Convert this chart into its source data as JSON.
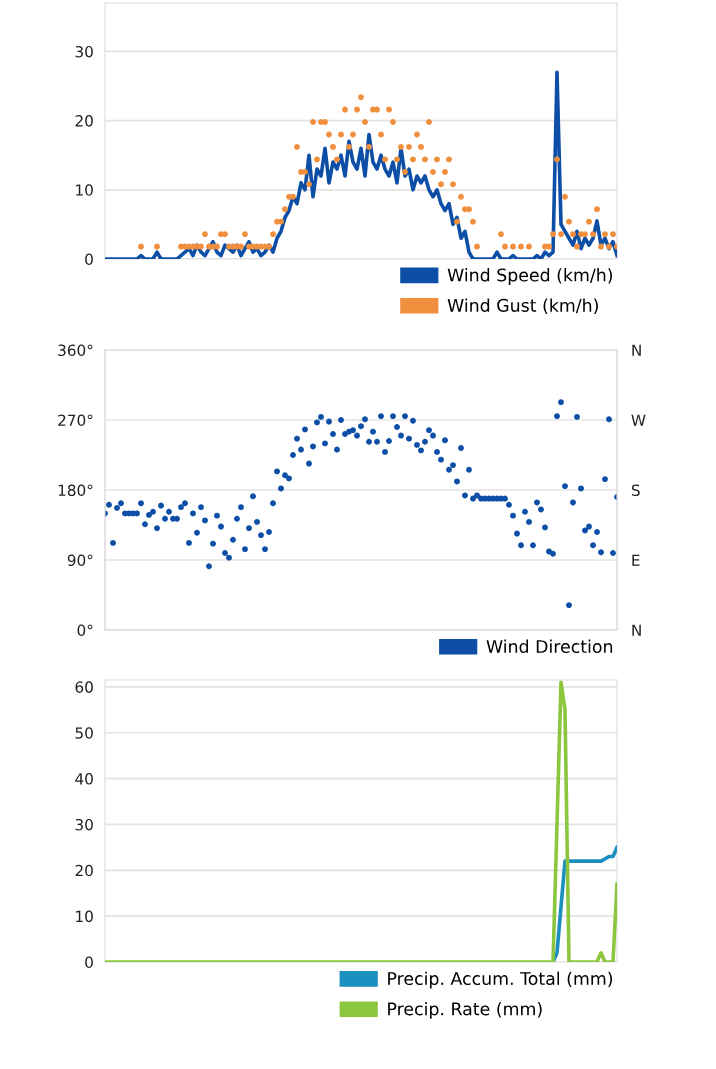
{
  "chart_data": [
    {
      "type": "line",
      "categories": [
        null,
        null,
        null,
        null,
        null,
        null,
        null,
        null,
        null,
        null,
        null,
        null,
        null,
        null,
        null,
        null,
        null,
        null,
        null,
        null,
        null,
        null,
        null,
        null,
        null,
        null,
        null,
        null,
        null,
        null,
        null,
        null,
        null,
        null,
        null,
        null,
        null,
        null,
        null,
        null,
        null,
        null,
        null,
        null,
        null,
        null,
        null,
        null,
        null,
        null,
        null,
        null,
        null,
        null,
        null,
        null,
        null,
        null,
        null,
        null,
        null,
        null,
        null,
        null,
        null,
        null,
        null,
        null,
        null,
        null,
        null,
        null,
        null,
        null,
        null,
        null,
        null,
        null,
        null,
        null,
        null,
        null,
        null,
        null,
        null,
        null,
        null,
        null,
        null,
        null,
        null,
        null,
        null,
        null,
        null,
        null,
        null,
        null,
        null,
        null,
        null,
        null,
        null,
        null,
        null,
        null,
        null,
        null,
        null,
        null,
        null,
        null,
        null,
        null,
        null,
        null,
        null,
        null,
        null,
        null,
        null,
        null,
        null,
        null,
        null,
        null,
        null,
        null,
        null
      ],
      "ylim": [
        0,
        37
      ],
      "yticks": [
        0,
        10,
        20,
        30
      ],
      "grid": "y",
      "legend": "bottom right",
      "series": [
        {
          "name": "Wind Speed (km/h)",
          "color": "#0d4fa6",
          "values": [
            0,
            0,
            0,
            0,
            0,
            0,
            0,
            0,
            0,
            0.5,
            0,
            0,
            0,
            1,
            0,
            0,
            0,
            0,
            0,
            0.5,
            1,
            1.5,
            0.5,
            2,
            1,
            0.5,
            1.5,
            2.5,
            1,
            0.5,
            2,
            1.5,
            1,
            2,
            0.5,
            1.5,
            2.5,
            1,
            1.5,
            0.5,
            1,
            2,
            1,
            3,
            4,
            6,
            7,
            9,
            8,
            11,
            10,
            15,
            9,
            13,
            12,
            16,
            11,
            14,
            13,
            15,
            12,
            17,
            14,
            13,
            16,
            12,
            18,
            14,
            13,
            15,
            13,
            12,
            14,
            11,
            16,
            12,
            13,
            10,
            12,
            11,
            12,
            10,
            9,
            10,
            8,
            7,
            8,
            5,
            6,
            3,
            4,
            1,
            0,
            0,
            0,
            0,
            0,
            0,
            1,
            0,
            0,
            0,
            0.5,
            0,
            0,
            0,
            0,
            0,
            0.5,
            0,
            1,
            0.5,
            1,
            27,
            5,
            4,
            3,
            2,
            4,
            1.5,
            3,
            2,
            3,
            5.5,
            2,
            3,
            1.5,
            2.5,
            0.5
          ]
        },
        {
          "name": "Wind Gust (km/h)",
          "type": "scatter",
          "marker": "circle",
          "color": "#f0903f",
          "values": [
            null,
            null,
            null,
            null,
            null,
            null,
            null,
            null,
            null,
            1.8,
            null,
            null,
            null,
            1.8,
            null,
            null,
            null,
            null,
            null,
            1.8,
            1.8,
            1.8,
            1.8,
            1.8,
            1.8,
            3.6,
            1.8,
            1.8,
            1.8,
            3.6,
            3.6,
            1.8,
            1.8,
            1.8,
            1.8,
            3.6,
            1.8,
            1.8,
            1.8,
            1.8,
            1.8,
            1.8,
            3.6,
            5.4,
            5.4,
            7.2,
            9.0,
            9.0,
            16.2,
            12.6,
            12.6,
            10.8,
            19.8,
            14.4,
            19.8,
            19.8,
            18.0,
            16.2,
            14.4,
            18.0,
            21.6,
            16.2,
            18.0,
            21.6,
            23.4,
            19.8,
            16.2,
            21.6,
            21.6,
            18.0,
            14.4,
            21.6,
            19.8,
            14.4,
            16.2,
            12.6,
            16.2,
            14.4,
            18.0,
            16.2,
            14.4,
            19.8,
            12.6,
            14.4,
            10.8,
            12.6,
            14.4,
            10.8,
            5.4,
            9.0,
            7.2,
            7.2,
            5.4,
            1.8,
            null,
            null,
            null,
            null,
            null,
            3.6,
            1.8,
            null,
            1.8,
            null,
            1.8,
            null,
            1.8,
            null,
            null,
            null,
            1.8,
            1.8,
            3.6,
            14.4,
            3.6,
            9.0,
            5.4,
            3.6,
            1.8,
            3.6,
            3.6,
            5.4,
            3.6,
            7.2,
            1.8,
            3.6,
            1.8,
            3.6,
            1.8
          ]
        }
      ]
    },
    {
      "type": "scatter",
      "marker": "circle",
      "categories": [
        null,
        null,
        null,
        null,
        null,
        null,
        null,
        null,
        null,
        null,
        null,
        null,
        null,
        null,
        null,
        null,
        null,
        null,
        null,
        null,
        null,
        null,
        null,
        null,
        null,
        null,
        null,
        null,
        null,
        null,
        null,
        null,
        null,
        null,
        null,
        null,
        null,
        null,
        null,
        null,
        null,
        null,
        null,
        null,
        null,
        null,
        null,
        null,
        null,
        null,
        null,
        null,
        null,
        null,
        null,
        null,
        null,
        null,
        null,
        null,
        null,
        null,
        null,
        null,
        null,
        null,
        null,
        null,
        null,
        null,
        null,
        null,
        null,
        null,
        null,
        null,
        null,
        null,
        null,
        null,
        null,
        null,
        null,
        null,
        null,
        null,
        null,
        null,
        null,
        null,
        null,
        null,
        null,
        null,
        null,
        null,
        null,
        null,
        null,
        null,
        null,
        null,
        null,
        null,
        null,
        null,
        null,
        null,
        null,
        null,
        null,
        null,
        null,
        null,
        null,
        null,
        null,
        null,
        null,
        null,
        null,
        null,
        null,
        null,
        null,
        null,
        null,
        null,
        null
      ],
      "ylim": [
        0,
        360
      ],
      "yticks": [
        {
          "value": 0,
          "label": "0°"
        },
        {
          "value": 90,
          "label": "90°"
        },
        {
          "value": 180,
          "label": "180°"
        },
        {
          "value": 270,
          "label": "270°"
        },
        {
          "value": 360,
          "label": "360°"
        }
      ],
      "y2_categories": [
        "N",
        "W",
        "S",
        "E",
        "N"
      ],
      "grid": "y",
      "legend": "bottom right",
      "series": [
        {
          "name": "Wind Direction",
          "color": "#0d4fa6",
          "values": [
            150,
            161,
            112,
            157,
            163,
            150,
            150,
            150,
            150,
            163,
            136,
            148,
            152,
            131,
            160,
            143,
            152,
            143,
            143,
            158,
            163,
            112,
            150,
            125,
            158,
            141,
            82,
            111,
            147,
            133,
            99,
            93,
            116,
            143,
            158,
            104,
            131,
            172,
            139,
            122,
            104,
            126,
            163,
            204,
            182,
            199,
            195,
            225,
            246,
            232,
            258,
            214,
            236,
            267,
            274,
            240,
            268,
            252,
            232,
            270,
            252,
            255,
            257,
            250,
            262,
            271,
            242,
            255,
            242,
            275,
            229,
            243,
            275,
            261,
            250,
            275,
            246,
            269,
            238,
            231,
            242,
            257,
            250,
            229,
            219,
            244,
            206,
            212,
            191,
            234,
            173,
            206,
            169,
            173,
            169,
            169,
            169,
            169,
            169,
            169,
            169,
            161,
            147,
            124,
            109,
            152,
            139,
            109,
            164,
            155,
            132,
            101,
            98,
            275,
            293,
            185,
            32,
            164,
            274,
            182,
            128,
            133,
            109,
            126,
            100,
            194,
            271,
            99,
            171
          ]
        }
      ]
    },
    {
      "type": "line",
      "categories": [
        null,
        null,
        null,
        null,
        null,
        null,
        null,
        null,
        null,
        null,
        null,
        null,
        null,
        null,
        null,
        null,
        null,
        null,
        null,
        null,
        null,
        null,
        null,
        null,
        null,
        null,
        null,
        null,
        null,
        null,
        null,
        null,
        null,
        null,
        null,
        null,
        null,
        null,
        null,
        null,
        null,
        null,
        null,
        null,
        null,
        null,
        null,
        null,
        null,
        null,
        null,
        null,
        null,
        null,
        null,
        null,
        null,
        null,
        null,
        null,
        null,
        null,
        null,
        null,
        null,
        null,
        null,
        null,
        null,
        null,
        null,
        null,
        null,
        null,
        null,
        null,
        null,
        null,
        null,
        null,
        null,
        null,
        null,
        null,
        null,
        null,
        null,
        null,
        null,
        null,
        null,
        null,
        null,
        null,
        null,
        null,
        null,
        null,
        null,
        null,
        null,
        null,
        null,
        null,
        null,
        null,
        null,
        null,
        null,
        null,
        null,
        null,
        null,
        null,
        null,
        null,
        null,
        null,
        null,
        null,
        null,
        null,
        null,
        null,
        null,
        null,
        null,
        null,
        null
      ],
      "ylim": [
        0,
        61.5
      ],
      "yticks": [
        0,
        10,
        20,
        30,
        40,
        50,
        60
      ],
      "grid": "y",
      "legend": "bottom right",
      "series": [
        {
          "name": "Precip. Accum. Total (mm)",
          "color": "#1a8fc0",
          "values": [
            null,
            null,
            null,
            null,
            null,
            null,
            null,
            null,
            null,
            null,
            null,
            null,
            null,
            null,
            null,
            null,
            null,
            null,
            null,
            null,
            null,
            null,
            null,
            null,
            null,
            null,
            null,
            null,
            null,
            null,
            null,
            null,
            null,
            null,
            null,
            null,
            null,
            null,
            null,
            null,
            null,
            null,
            null,
            null,
            null,
            null,
            null,
            null,
            null,
            null,
            null,
            null,
            null,
            null,
            null,
            null,
            null,
            null,
            null,
            null,
            null,
            null,
            null,
            null,
            null,
            null,
            null,
            null,
            null,
            null,
            null,
            null,
            null,
            null,
            null,
            null,
            null,
            null,
            null,
            null,
            null,
            null,
            null,
            null,
            null,
            null,
            null,
            null,
            null,
            null,
            null,
            null,
            null,
            null,
            null,
            null,
            null,
            null,
            null,
            null,
            null,
            null,
            null,
            null,
            null,
            null,
            null,
            null,
            null,
            null,
            null,
            null,
            0,
            2,
            12,
            22,
            22,
            22,
            22,
            22,
            22,
            22,
            22,
            22,
            22,
            22.5,
            23,
            23,
            25
          ]
        },
        {
          "name": "Precip. Rate (mm)",
          "color": "#8cc63f",
          "values": [
            0,
            0,
            0,
            0,
            0,
            0,
            0,
            0,
            0,
            0,
            0,
            0,
            0,
            0,
            0,
            0,
            0,
            0,
            0,
            0,
            0,
            0,
            0,
            0,
            0,
            0,
            0,
            0,
            0,
            0,
            0,
            0,
            0,
            0,
            0,
            0,
            0,
            0,
            0,
            0,
            0,
            0,
            0,
            0,
            0,
            0,
            0,
            0,
            0,
            0,
            0,
            0,
            0,
            0,
            0,
            0,
            0,
            0,
            0,
            0,
            0,
            0,
            0,
            0,
            0,
            0,
            0,
            0,
            0,
            0,
            0,
            0,
            0,
            0,
            0,
            0,
            0,
            0,
            0,
            0,
            0,
            0,
            0,
            0,
            0,
            0,
            0,
            0,
            0,
            0,
            0,
            0,
            0,
            0,
            0,
            0,
            0,
            0,
            0,
            0,
            0,
            0,
            0,
            0,
            0,
            0,
            0,
            0,
            0,
            0,
            0,
            0,
            0,
            30,
            61,
            55,
            0,
            0,
            0,
            0,
            0,
            0,
            0,
            0,
            2,
            0,
            0,
            0,
            17
          ]
        }
      ]
    }
  ]
}
